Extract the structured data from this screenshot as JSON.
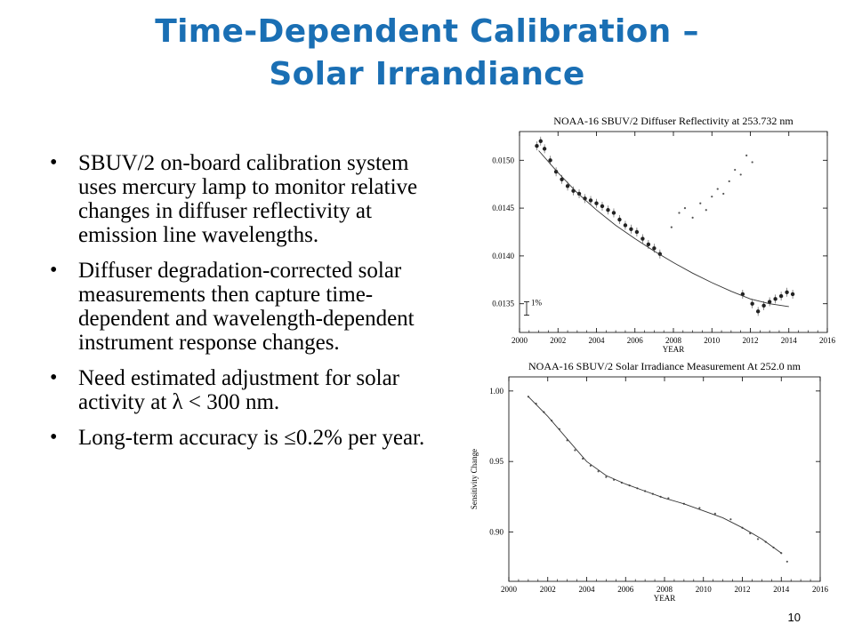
{
  "slide": {
    "title_line1": "Time-Dependent Calibration –",
    "title_line2": "Solar Irrandiance",
    "page_number": "10",
    "title_color": "#1a6fb4"
  },
  "bullets": [
    "SBUV/2 on-board calibration system uses mercury lamp to monitor relative changes in diffuser reflectivity at emission line wavelengths.",
    "Diffuser degradation-corrected solar measurements then capture time-dependent and wavelength-dependent instrument response changes.",
    "Need estimated adjustment for solar activity at λ < 300 nm.",
    "Long-term accuracy is ≤0.2% per year."
  ],
  "chart_data": [
    {
      "type": "scatter",
      "title": "NOAA-16 SBUV/2 Diffuser Reflectivity at 253.732 nm",
      "xlabel": "YEAR",
      "ylabel": "",
      "xlim": [
        2000,
        2016
      ],
      "ylim": [
        0.0132,
        0.0153
      ],
      "x_ticks": [
        2000,
        2002,
        2004,
        2006,
        2008,
        2010,
        2012,
        2014,
        2016
      ],
      "y_ticks": [
        0.0135,
        0.014,
        0.0145,
        0.015
      ],
      "y_tick_labels": [
        "0.0135",
        "0.0140",
        "0.0145",
        "0.0150"
      ],
      "annotation": "1%",
      "series": [
        {
          "style": "points-with-error-bars",
          "x": [
            2000.9,
            2001.1,
            2001.3,
            2001.6,
            2001.9,
            2002.2,
            2002.5,
            2002.8,
            2003.1,
            2003.4,
            2003.7,
            2004.0,
            2004.3,
            2004.6,
            2004.9,
            2005.2,
            2005.5,
            2005.8,
            2006.1,
            2006.4,
            2006.7,
            2007.0,
            2007.3,
            2011.6,
            2012.1,
            2012.4,
            2012.7,
            2013.0,
            2013.3,
            2013.6,
            2013.9,
            2014.2
          ],
          "y": [
            0.01515,
            0.0152,
            0.01512,
            0.015,
            0.01488,
            0.0148,
            0.01473,
            0.01468,
            0.01465,
            0.0146,
            0.01458,
            0.01455,
            0.01452,
            0.01448,
            0.01445,
            0.01438,
            0.01432,
            0.01428,
            0.01425,
            0.01418,
            0.01412,
            0.01408,
            0.01402,
            0.0136,
            0.0135,
            0.01342,
            0.01348,
            0.01352,
            0.01355,
            0.01358,
            0.01362,
            0.0136
          ]
        },
        {
          "style": "scattered-dots",
          "x": [
            2007.9,
            2008.3,
            2008.6,
            2009.0,
            2009.4,
            2009.7,
            2010.0,
            2010.3,
            2010.6,
            2010.9,
            2011.2,
            2011.5,
            2011.8,
            2012.1
          ],
          "y": [
            0.0143,
            0.01445,
            0.0145,
            0.0144,
            0.01455,
            0.01448,
            0.01462,
            0.0147,
            0.01465,
            0.01478,
            0.0149,
            0.01485,
            0.01505,
            0.01498
          ]
        },
        {
          "style": "fit-line",
          "x": [
            2001.0,
            2002.0,
            2003.0,
            2004.0,
            2005.0,
            2006.0,
            2007.0,
            2008.0,
            2009.0,
            2010.0,
            2011.0,
            2012.0,
            2013.0,
            2014.0
          ],
          "y": [
            0.0151,
            0.01487,
            0.01466,
            0.01448,
            0.01432,
            0.01418,
            0.01405,
            0.01393,
            0.01382,
            0.01372,
            0.01363,
            0.01355,
            0.0135,
            0.01347
          ]
        }
      ]
    },
    {
      "type": "scatter",
      "title": "NOAA-16 SBUV/2 Solar Irradiance Measurement At 252.0 nm",
      "xlabel": "YEAR",
      "ylabel": "Sensitivity Change",
      "xlim": [
        2000,
        2016
      ],
      "ylim": [
        0.865,
        1.01
      ],
      "x_ticks": [
        2000,
        2002,
        2004,
        2006,
        2008,
        2010,
        2012,
        2014,
        2016
      ],
      "y_ticks": [
        0.9,
        0.95,
        1.0
      ],
      "y_tick_labels": [
        "0.90",
        "0.95",
        "1.00"
      ],
      "series": [
        {
          "style": "scattered-dots",
          "x": [
            2001.0,
            2001.4,
            2001.8,
            2002.2,
            2002.6,
            2003.0,
            2003.4,
            2003.8,
            2004.2,
            2004.6,
            2005.0,
            2005.4,
            2005.8,
            2006.2,
            2006.6,
            2007.0,
            2007.4,
            2007.8,
            2008.2,
            2009.0,
            2009.8,
            2010.6,
            2011.4,
            2012.0,
            2012.4,
            2012.8,
            2013.2,
            2013.6,
            2014.0,
            2014.3
          ],
          "y": [
            0.996,
            0.991,
            0.985,
            0.979,
            0.973,
            0.965,
            0.958,
            0.952,
            0.947,
            0.943,
            0.939,
            0.937,
            0.935,
            0.933,
            0.931,
            0.929,
            0.927,
            0.925,
            0.924,
            0.92,
            0.917,
            0.913,
            0.909,
            0.903,
            0.899,
            0.895,
            0.893,
            0.889,
            0.885,
            0.879
          ]
        },
        {
          "style": "fit-line",
          "x": [
            2001.0,
            2002.0,
            2003.0,
            2004.0,
            2005.0,
            2006.0,
            2007.0,
            2008.0,
            2009.0,
            2010.0,
            2011.0,
            2012.0,
            2013.0,
            2014.0
          ],
          "y": [
            0.996,
            0.982,
            0.966,
            0.95,
            0.94,
            0.934,
            0.929,
            0.924,
            0.92,
            0.915,
            0.91,
            0.903,
            0.895,
            0.885
          ]
        }
      ]
    }
  ]
}
